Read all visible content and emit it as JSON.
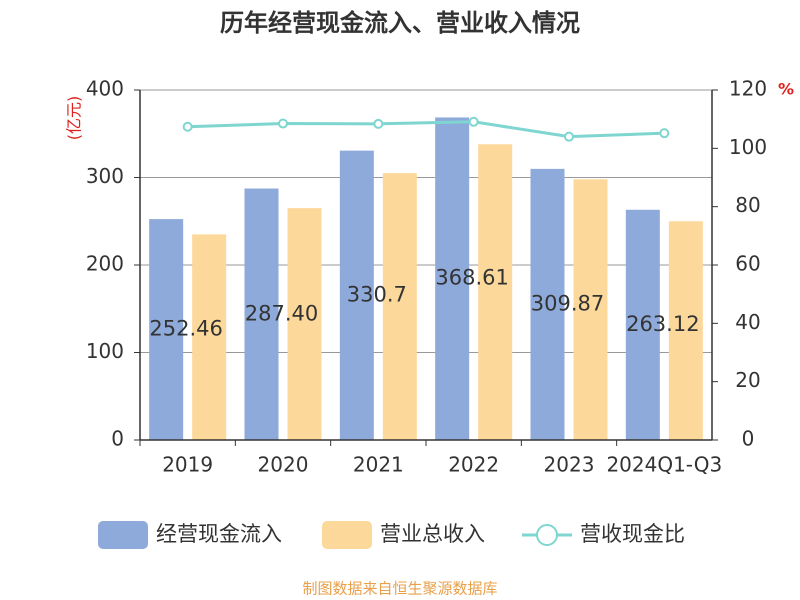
{
  "chart_data": {
    "type": "bar",
    "title": "历年经营现金流入、营业收入情况",
    "y_label": "(亿元)",
    "y2_label": "%",
    "categories": [
      "2019",
      "2020",
      "2021",
      "2022",
      "2023",
      "2024Q1-Q3"
    ],
    "series": [
      {
        "name": "经营现金流入",
        "color": "#8eaadb",
        "values": [
          252.46,
          287.4,
          330.7,
          368.61,
          309.87,
          263.12
        ],
        "value_labels": [
          "252.46",
          "287.40",
          "330.7",
          "368.61",
          "309.87",
          "263.12"
        ]
      },
      {
        "name": "营业总收入",
        "color": "#fdd89b",
        "values": [
          235,
          265,
          305,
          338,
          298,
          250
        ]
      },
      {
        "name": "营收现金比",
        "color": "#7fd6d0",
        "type": "line",
        "axis": "y2",
        "values": [
          107.4,
          108.5,
          108.4,
          109.1,
          104,
          105.2
        ]
      }
    ],
    "ylim": [
      0,
      400
    ],
    "yticks": [
      0,
      100,
      200,
      300,
      400
    ],
    "y2lim": [
      0,
      120
    ],
    "y2ticks": [
      0,
      20,
      40,
      60,
      80,
      100,
      120
    ],
    "grid": true,
    "source": "制图数据来自恒生聚源数据库"
  }
}
